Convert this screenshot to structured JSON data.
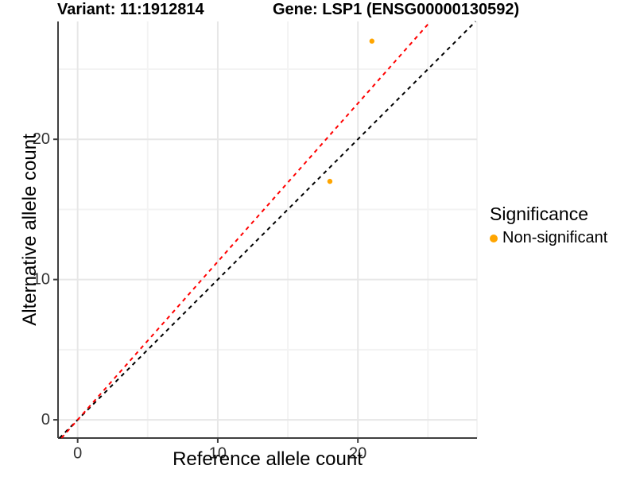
{
  "chart_data": {
    "type": "scatter",
    "title_left": "Variant: 11:1912814",
    "title_right": "Gene: LSP1 (ENSG00000130592)",
    "xlabel": "Reference allele count",
    "ylabel": "Alternative allele count",
    "x_range": [
      -1.4,
      28.5
    ],
    "y_range": [
      -1.3,
      28.4
    ],
    "x_ticks": [
      0,
      10,
      20
    ],
    "y_ticks": [
      0,
      10,
      20
    ],
    "x_minor_ticks": [
      5,
      15,
      25
    ],
    "y_minor_ticks": [
      5,
      15,
      25
    ],
    "grid": true,
    "series": [
      {
        "name": "Non-significant",
        "color": "#FFA500",
        "points": [
          {
            "x": 18,
            "y": 17
          },
          {
            "x": 21,
            "y": 27
          }
        ]
      }
    ],
    "lines": [
      {
        "name": "identity-line",
        "slope": 1,
        "intercept": 0,
        "color": "#000000",
        "style": "dashed"
      },
      {
        "name": "alt-ref-ratio-line",
        "slope": 1.128,
        "intercept": 0,
        "color": "#FF0000",
        "style": "dashed"
      }
    ],
    "legend": {
      "title": "Significance",
      "position": "right",
      "entries": [
        {
          "label": "Non-significant",
          "color": "#FFA500"
        }
      ]
    },
    "colors": {
      "grid_major": "#E7E7E7",
      "grid_minor": "#F3F3F3",
      "axis_line": "#3F3F3F",
      "tick_text": "#333333"
    }
  }
}
